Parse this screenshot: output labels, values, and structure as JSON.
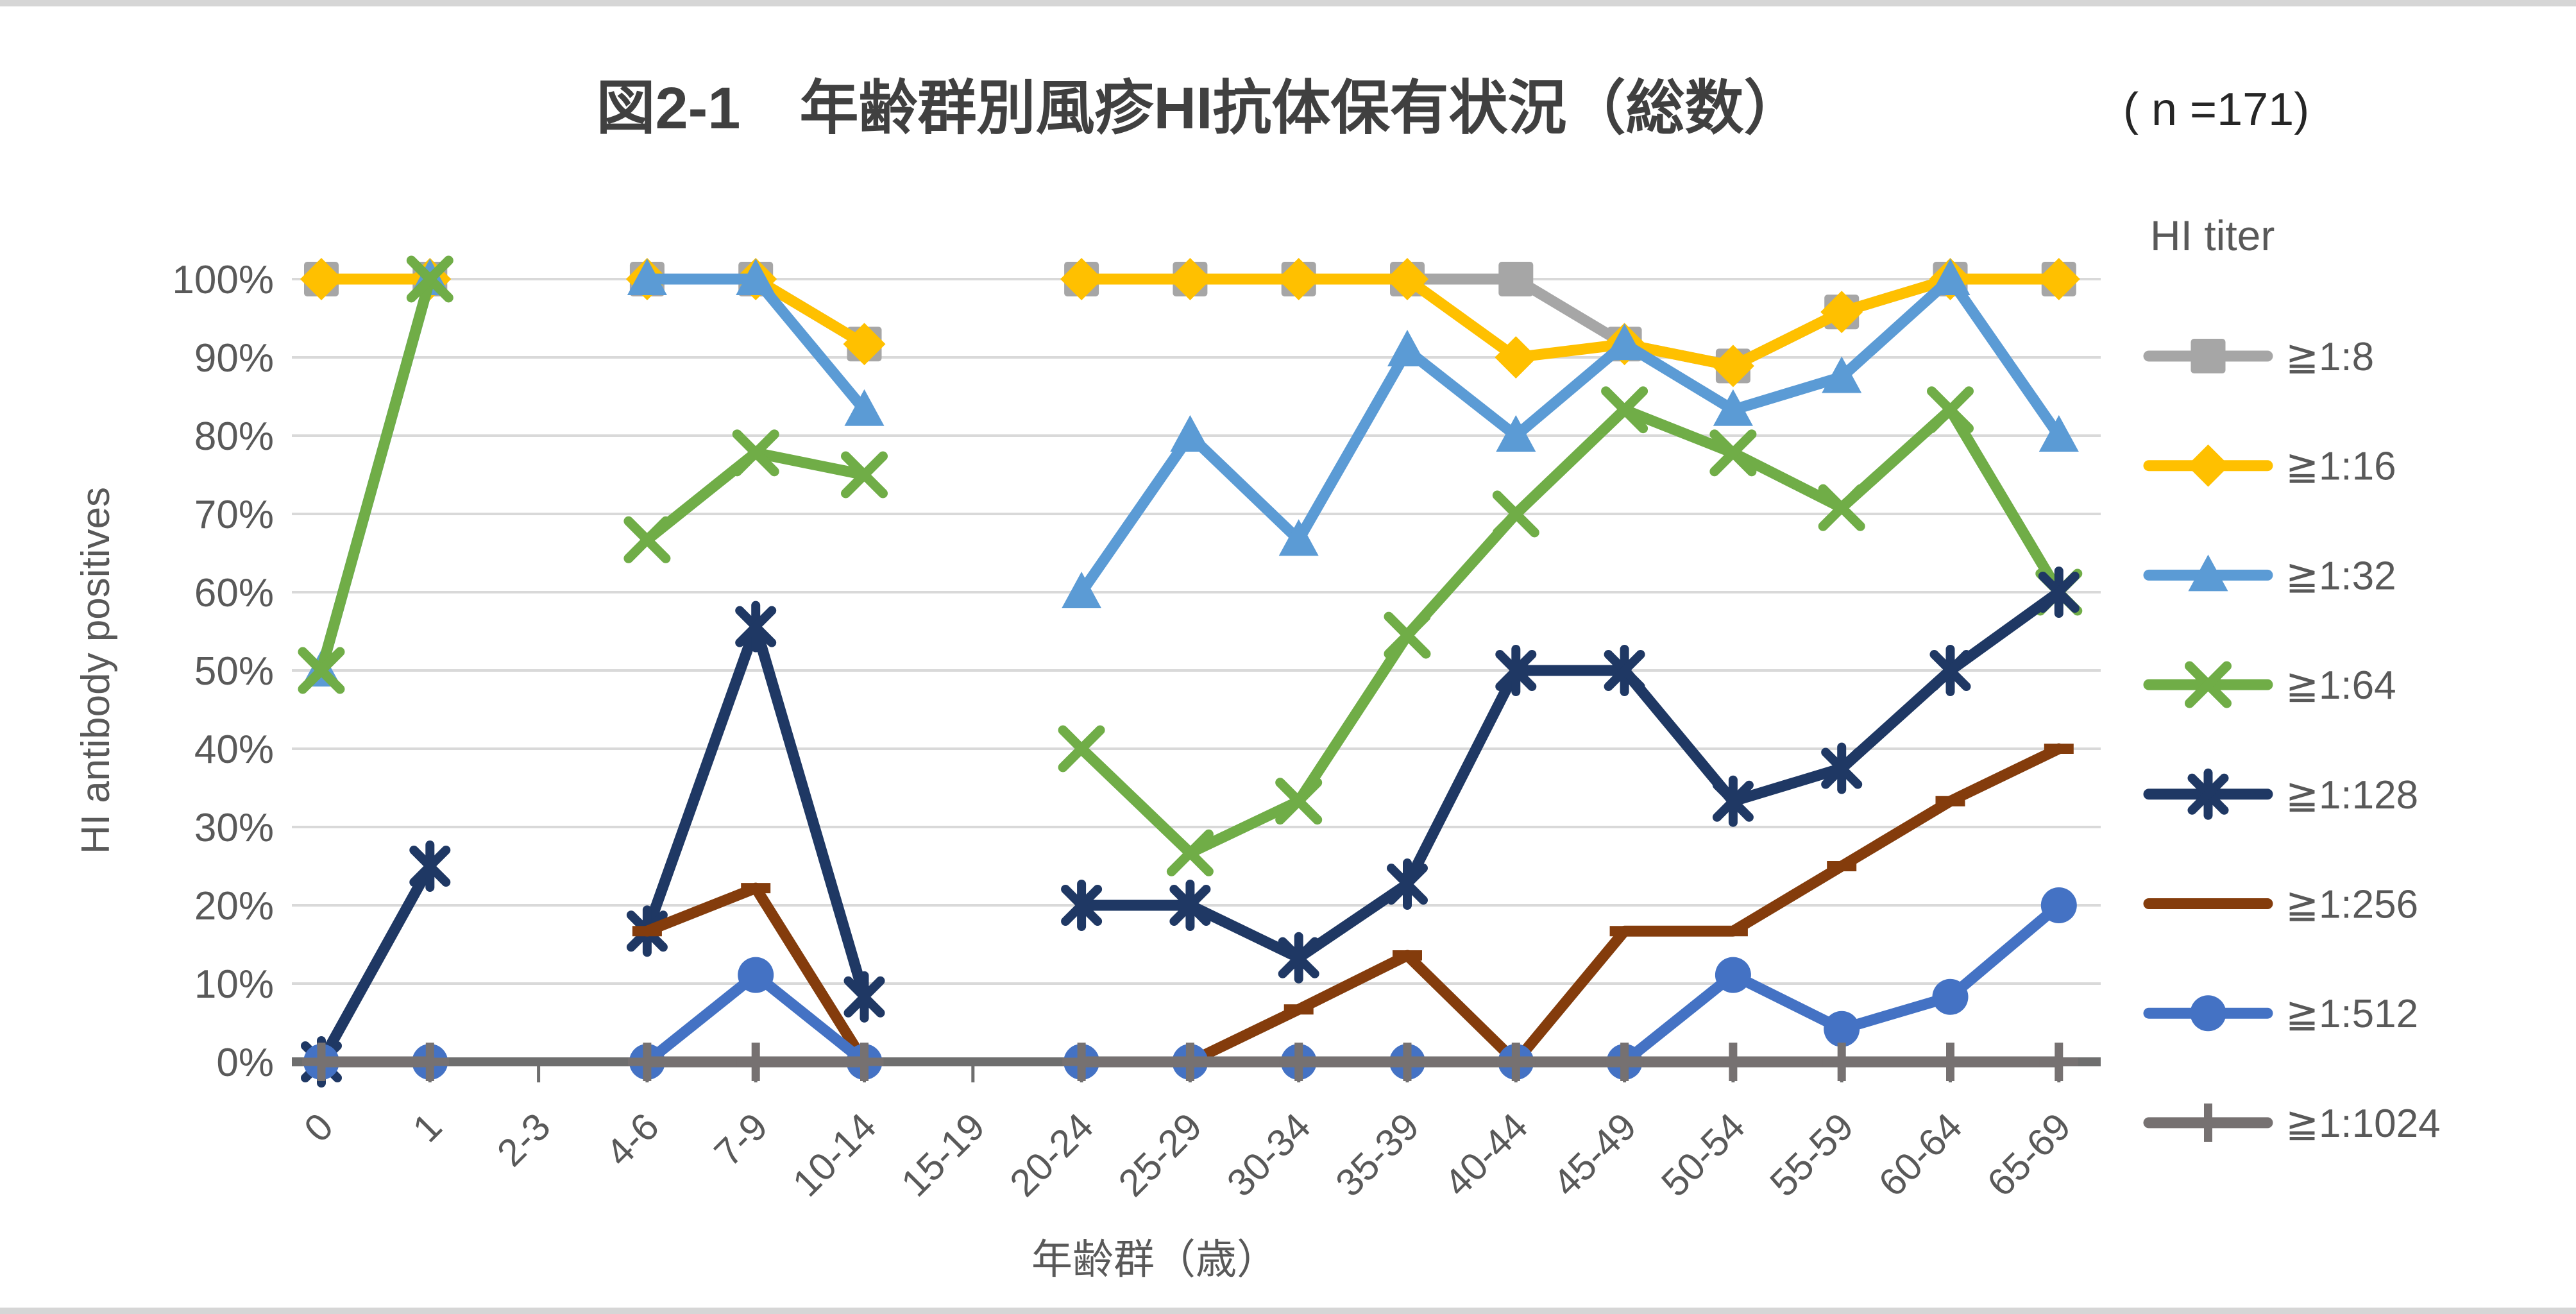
{
  "header": {
    "title": "図2-1　年齢群別風疹HI抗体保有状況（総数）",
    "n_label": "( n =171)"
  },
  "chart_data": {
    "type": "line",
    "title": "図2-1　年齢群別風疹HI抗体保有状況（総数）",
    "n_label": "( n =171)",
    "xlabel": "年齢群（歳）",
    "ylabel": "HI antibody positives",
    "ylim": [
      0,
      100
    ],
    "ytick_step": 10,
    "ytick_labels": [
      "0%",
      "10%",
      "20%",
      "30%",
      "40%",
      "50%",
      "60%",
      "70%",
      "80%",
      "90%",
      "100%"
    ],
    "grid": true,
    "legend_title": "HI titer",
    "legend_position": "right",
    "categories": [
      "0",
      "1",
      "2-3",
      "4-6",
      "7-9",
      "10-14",
      "15-19",
      "20-24",
      "25-29",
      "30-34",
      "35-39",
      "40-44",
      "45-49",
      "50-54",
      "55-59",
      "60-64",
      "65-69"
    ],
    "series": [
      {
        "name": "≧1:8",
        "color": "#a6a6a6",
        "marker": "square",
        "values": [
          100,
          100,
          null,
          100,
          100,
          91.7,
          null,
          100,
          100,
          100,
          100,
          100,
          91.7,
          88.9,
          95.8,
          100,
          100
        ]
      },
      {
        "name": "≧1:16",
        "color": "#ffc000",
        "marker": "diamond",
        "values": [
          100,
          100,
          null,
          100,
          100,
          91.7,
          null,
          100,
          100,
          100,
          100,
          90,
          91.7,
          88.9,
          95.8,
          100,
          100
        ]
      },
      {
        "name": "≧1:32",
        "color": "#5b9bd5",
        "marker": "triangle",
        "values": [
          50,
          100,
          null,
          100,
          100,
          83.3,
          null,
          60,
          80,
          66.7,
          90.9,
          80,
          91.7,
          83.3,
          87.5,
          100,
          80
        ]
      },
      {
        "name": "≧1:64",
        "color": "#70ad47",
        "marker": "x",
        "values": [
          50,
          100,
          null,
          66.7,
          77.8,
          75,
          null,
          40,
          26.7,
          33.3,
          54.5,
          70,
          83.3,
          77.8,
          70.8,
          83.3,
          60
        ]
      },
      {
        "name": "≧1:128",
        "color": "#1f3864",
        "marker": "asterisk",
        "values": [
          0,
          25,
          null,
          16.7,
          55.6,
          8.3,
          null,
          20,
          20,
          13.3,
          22.7,
          50,
          50,
          33.3,
          37.5,
          50,
          60
        ]
      },
      {
        "name": "≧1:256",
        "color": "#843c0c",
        "marker": "dash",
        "values": [
          0,
          0,
          null,
          16.7,
          22.2,
          0,
          null,
          0,
          0,
          6.7,
          13.6,
          0,
          16.7,
          16.7,
          25,
          33.3,
          40
        ]
      },
      {
        "name": "≧1:512",
        "color": "#4472c4",
        "marker": "circle",
        "values": [
          0,
          0,
          null,
          0,
          11.1,
          0,
          null,
          0,
          0,
          0,
          0,
          0,
          0,
          11.1,
          4.2,
          8.3,
          20
        ]
      },
      {
        "name": "≧1:1024",
        "color": "#767171",
        "marker": "plus",
        "values": [
          0,
          0,
          null,
          0,
          0,
          0,
          null,
          0,
          0,
          0,
          0,
          0,
          0,
          0,
          0,
          0,
          0
        ]
      }
    ],
    "colors": {
      "gridline": "#d9d9d9",
      "axis_line": "#6e6e6e",
      "tick_label": "#595959",
      "title": "#404040",
      "n_label": "#262626"
    }
  }
}
